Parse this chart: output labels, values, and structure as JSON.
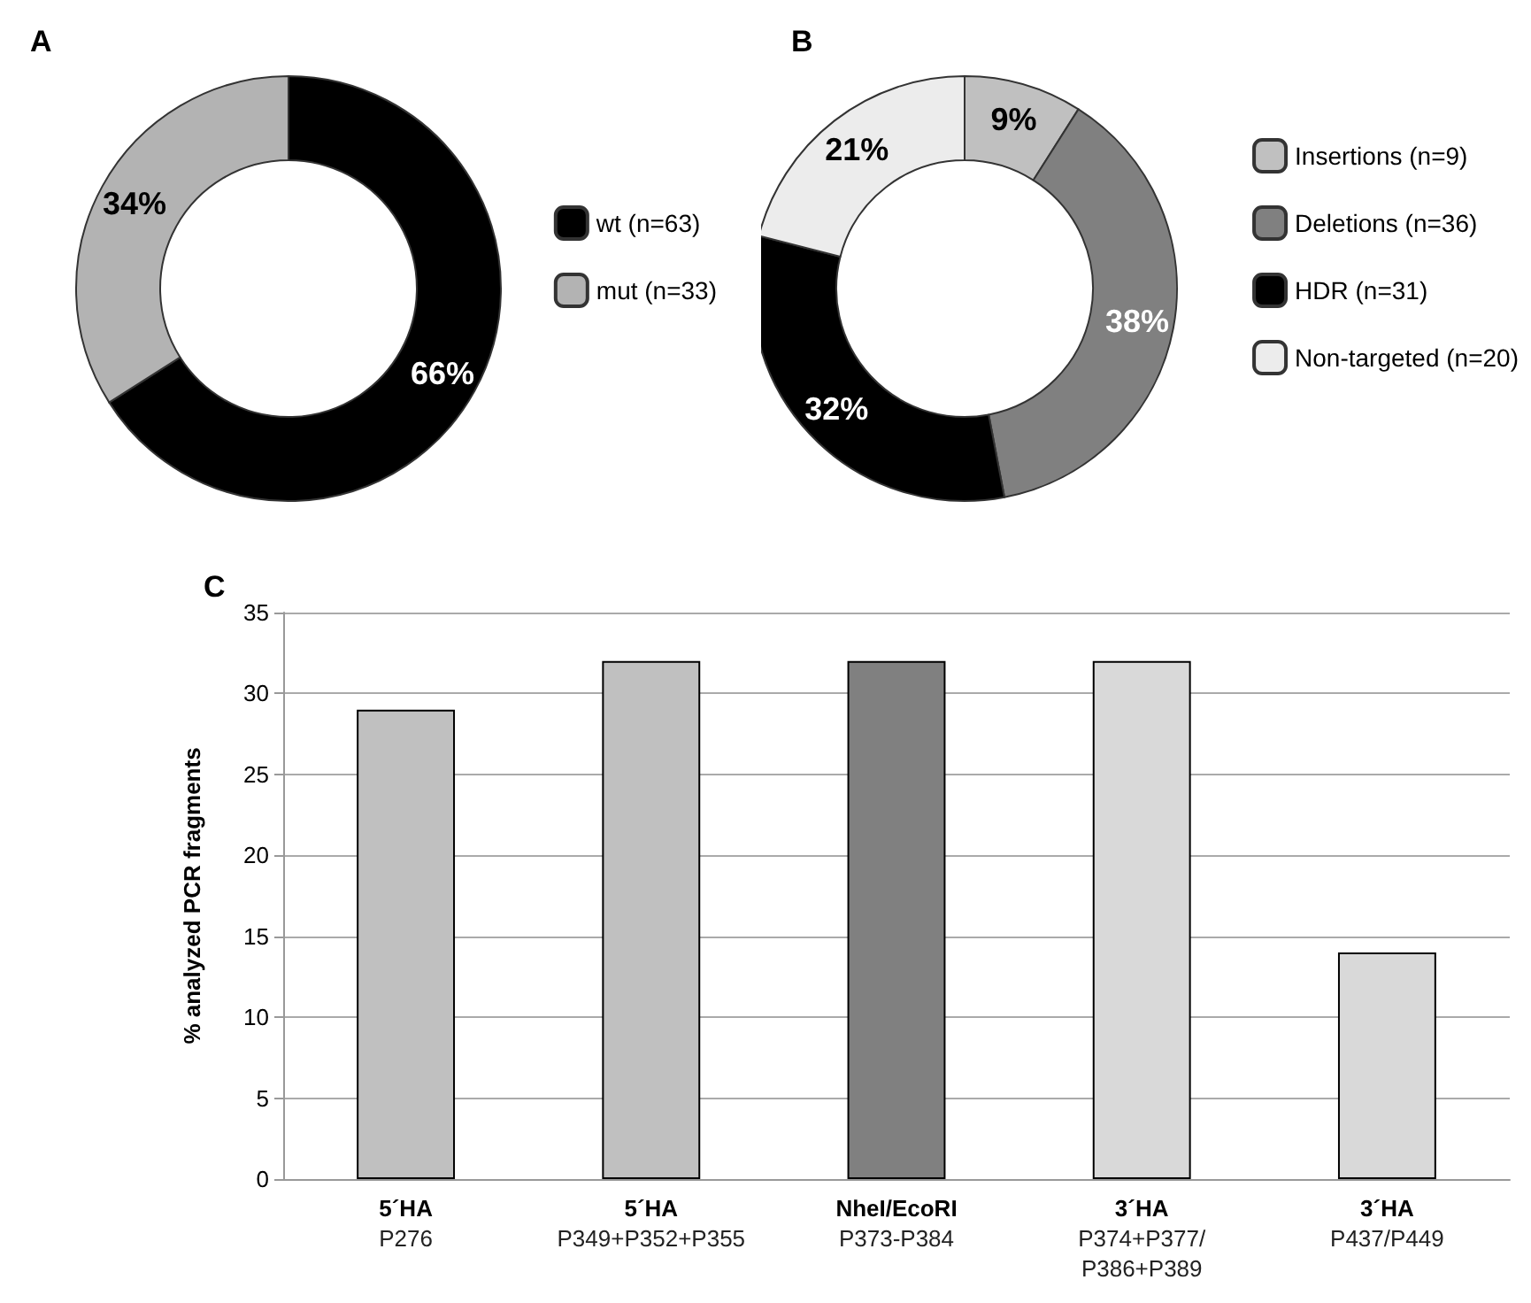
{
  "chart_data": [
    {
      "type": "donut",
      "title": "A",
      "categories": [
        "wt (n=63)",
        "mut (n=33)"
      ],
      "values": [
        66,
        34
      ],
      "colors": [
        "#000000",
        "#b3b3b3"
      ],
      "value_labels": [
        "66%",
        "34%"
      ],
      "legend": "right"
    },
    {
      "type": "donut",
      "title": "B",
      "categories": [
        "Insertions (n=9)",
        "Deletions (n=36)",
        "HDR (n=31)",
        "Non-targeted (n=20)"
      ],
      "values": [
        9,
        38,
        32,
        21
      ],
      "colors": [
        "#c0c0c0",
        "#808080",
        "#000000",
        "#ececec"
      ],
      "value_labels": [
        "9%",
        "38%",
        "32%",
        "21%"
      ],
      "legend": "right"
    },
    {
      "type": "bar",
      "title": "C",
      "ylabel": "% analyzed PCR fragments",
      "categories": [
        "5´HA\nP276",
        "5´HA\nP349+P352+P355",
        "NheI/EcoRI\nP373-P384",
        "3´HA\nP374+P377/\nP386+P389",
        "3´HA\nP437/P449"
      ],
      "values": [
        29,
        32,
        32,
        32,
        14
      ],
      "colors": [
        "#c0c0c0",
        "#c0c0c0",
        "#808080",
        "#d9d9d9",
        "#d9d9d9"
      ],
      "ylim": [
        0,
        35
      ],
      "yticks": [
        0,
        5,
        10,
        15,
        20,
        25,
        30,
        35
      ],
      "grid": "y"
    }
  ]
}
